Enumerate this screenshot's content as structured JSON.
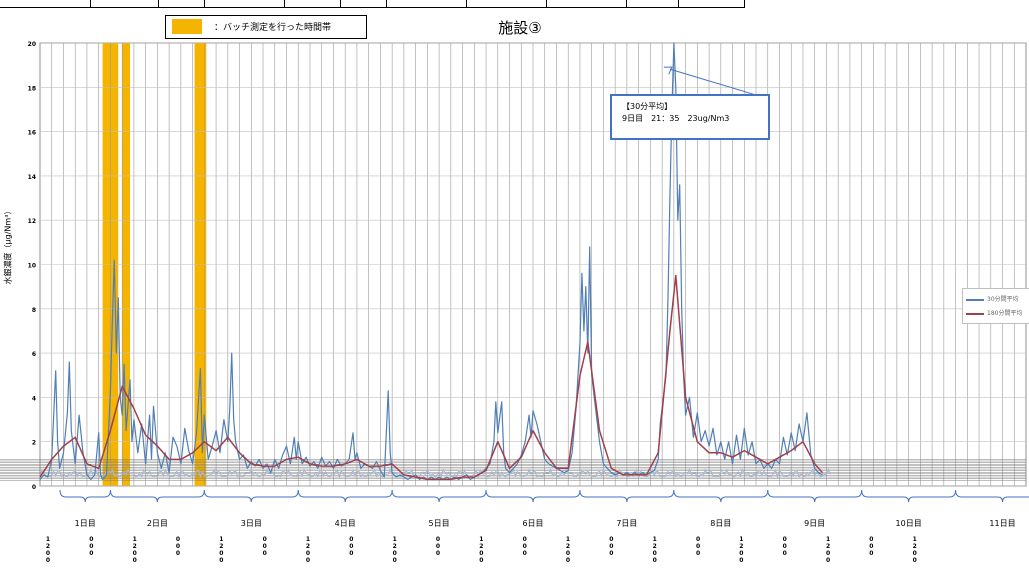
{
  "legend": {
    "batch_label": "：バッチ測定を行った時間帯"
  },
  "series_legend": {
    "items": [
      "30分間平均",
      "180分間平均"
    ]
  },
  "annotation": {
    "line1": "【30分平均】",
    "line2": "9日目　21：35　23ug/Nm3"
  },
  "colors": {
    "series30": "#4f7fb6",
    "series180": "#a0404a",
    "batch": "#f5b400",
    "annot_border": "#4472c4",
    "noise": "#aab8cf"
  },
  "chart_data": {
    "type": "line",
    "title": "施設③",
    "xlabel": "",
    "ylabel": "水銀濃度（μg/Nm³）",
    "ylim": [
      0,
      20
    ],
    "yticks": [
      0,
      2,
      4,
      6,
      8,
      10,
      12,
      14,
      16,
      18,
      20
    ],
    "grid": true,
    "legend_position": "right",
    "days": [
      "1日目",
      "2日目",
      "3日目",
      "4日目",
      "5日目",
      "6日目",
      "7日目",
      "8日目",
      "9日目",
      "10日目",
      "11日目"
    ],
    "time_ticks": [
      "12:00",
      "0:00",
      "12:00",
      "0:00",
      "12:00",
      "0:00",
      "12:00",
      "0:00",
      "12:00",
      "0:00",
      "12:00",
      "0:00",
      "12:00",
      "0:00",
      "12:00",
      "0:00",
      "12:00",
      "0:00",
      "12:00",
      "0:00",
      "12:00"
    ],
    "x_range_hours": [
      0,
      252
    ],
    "batch_periods_hours": [
      [
        16,
        20
      ],
      [
        21,
        23
      ],
      [
        39.5,
        42.5
      ]
    ],
    "series": [
      {
        "name": "30分間平均",
        "points": [
          [
            0,
            0.3
          ],
          [
            1,
            0.5
          ],
          [
            2,
            0.4
          ],
          [
            3,
            1.2
          ],
          [
            4,
            5.2
          ],
          [
            4.5,
            2.0
          ],
          [
            5,
            0.8
          ],
          [
            6,
            1.5
          ],
          [
            7,
            3.3
          ],
          [
            7.5,
            5.6
          ],
          [
            8,
            2.5
          ],
          [
            9,
            1.0
          ],
          [
            10,
            3.2
          ],
          [
            11,
            1.5
          ],
          [
            12,
            0.5
          ],
          [
            13,
            0.3
          ],
          [
            14,
            0.5
          ],
          [
            15,
            2.4
          ],
          [
            15.5,
            0.5
          ],
          [
            16,
            0.3
          ],
          [
            17,
            0.5
          ],
          [
            18,
            4.3
          ],
          [
            18.5,
            7.5
          ],
          [
            19,
            10.2
          ],
          [
            19.5,
            6.0
          ],
          [
            20,
            8.5
          ],
          [
            20.5,
            4.0
          ],
          [
            21,
            3.2
          ],
          [
            21.5,
            5.5
          ],
          [
            22,
            2.5
          ],
          [
            23,
            4.8
          ],
          [
            23.5,
            2.0
          ],
          [
            24,
            3.0
          ],
          [
            25,
            1.5
          ],
          [
            26,
            2.8
          ],
          [
            27,
            1.0
          ],
          [
            28,
            3.2
          ],
          [
            28.5,
            1.2
          ],
          [
            29,
            3.6
          ],
          [
            30,
            1.5
          ],
          [
            31,
            0.8
          ],
          [
            32,
            1.5
          ],
          [
            33,
            0.6
          ],
          [
            34,
            2.2
          ],
          [
            35,
            1.8
          ],
          [
            36,
            1.0
          ],
          [
            37,
            2.6
          ],
          [
            38,
            1.6
          ],
          [
            39,
            1.0
          ],
          [
            40,
            2.4
          ],
          [
            41,
            5.3
          ],
          [
            41.5,
            1.5
          ],
          [
            42,
            3.2
          ],
          [
            43,
            1.2
          ],
          [
            44,
            1.8
          ],
          [
            45,
            2.5
          ],
          [
            46,
            1.5
          ],
          [
            47,
            3.0
          ],
          [
            48,
            2.0
          ],
          [
            48.5,
            3.5
          ],
          [
            49,
            6.0
          ],
          [
            49.5,
            3.0
          ],
          [
            50,
            2.0
          ],
          [
            51,
            1.2
          ],
          [
            52,
            1.4
          ],
          [
            53,
            0.8
          ],
          [
            54,
            1.1
          ],
          [
            55,
            0.9
          ],
          [
            56,
            1.2
          ],
          [
            57,
            0.8
          ],
          [
            58,
            1.0
          ],
          [
            59,
            0.6
          ],
          [
            60,
            1.2
          ],
          [
            61,
            0.8
          ],
          [
            62,
            1.4
          ],
          [
            63,
            1.8
          ],
          [
            64,
            1.0
          ],
          [
            65,
            2.2
          ],
          [
            65.5,
            1.2
          ],
          [
            66,
            2.0
          ],
          [
            67,
            1.0
          ],
          [
            68,
            1.3
          ],
          [
            69,
            0.9
          ],
          [
            70,
            1.1
          ],
          [
            71,
            0.8
          ],
          [
            72,
            1.3
          ],
          [
            73,
            0.9
          ],
          [
            74,
            1.1
          ],
          [
            75,
            0.8
          ],
          [
            76,
            1.2
          ],
          [
            77,
            0.9
          ],
          [
            78,
            1.0
          ],
          [
            79,
            1.2
          ],
          [
            80,
            2.4
          ],
          [
            80.5,
            1.2
          ],
          [
            81,
            1.5
          ],
          [
            82,
            0.8
          ],
          [
            83,
            1.0
          ],
          [
            84,
            0.9
          ],
          [
            85,
            0.8
          ],
          [
            86,
            1.1
          ],
          [
            87,
            0.7
          ],
          [
            88,
            0.4
          ],
          [
            89,
            4.3
          ],
          [
            89.5,
            1.5
          ],
          [
            90,
            0.6
          ],
          [
            91,
            0.4
          ],
          [
            92,
            0.5
          ],
          [
            93,
            0.4
          ],
          [
            94,
            0.3
          ],
          [
            95,
            0.4
          ],
          [
            96,
            0.5
          ],
          [
            97,
            0.3
          ],
          [
            98,
            0.4
          ],
          [
            99,
            0.3
          ],
          [
            100,
            0.4
          ],
          [
            101,
            0.3
          ],
          [
            102,
            0.4
          ],
          [
            103,
            0.3
          ],
          [
            104,
            0.4
          ],
          [
            105,
            0.3
          ],
          [
            106,
            0.4
          ],
          [
            107,
            0.3
          ],
          [
            108,
            0.4
          ],
          [
            109,
            0.5
          ],
          [
            110,
            0.3
          ],
          [
            111,
            0.4
          ],
          [
            112,
            0.5
          ],
          [
            113,
            0.6
          ],
          [
            114,
            0.8
          ],
          [
            115,
            1.0
          ],
          [
            116,
            2.0
          ],
          [
            116.5,
            3.8
          ],
          [
            117,
            2.4
          ],
          [
            118,
            3.8
          ],
          [
            118.5,
            1.5
          ],
          [
            119,
            0.8
          ],
          [
            120,
            0.6
          ],
          [
            121,
            0.8
          ],
          [
            122,
            1.0
          ],
          [
            123,
            1.4
          ],
          [
            124,
            2.0
          ],
          [
            125,
            3.2
          ],
          [
            125.5,
            2.2
          ],
          [
            126,
            3.4
          ],
          [
            127,
            2.8
          ],
          [
            128,
            2.0
          ],
          [
            129,
            1.2
          ],
          [
            130,
            1.0
          ],
          [
            131,
            0.9
          ],
          [
            132,
            0.8
          ],
          [
            133,
            0.7
          ],
          [
            134,
            0.6
          ],
          [
            135,
            0.7
          ],
          [
            136,
            1.5
          ],
          [
            137,
            3.5
          ],
          [
            138,
            6.5
          ],
          [
            138.5,
            9.6
          ],
          [
            139,
            7.0
          ],
          [
            139.5,
            9.0
          ],
          [
            140,
            6.0
          ],
          [
            140.5,
            10.8
          ],
          [
            141,
            5.0
          ],
          [
            142,
            3.5
          ],
          [
            143,
            2.0
          ],
          [
            144,
            1.0
          ],
          [
            145,
            0.8
          ],
          [
            146,
            0.6
          ],
          [
            147,
            0.5
          ],
          [
            148,
            0.6
          ],
          [
            149,
            0.5
          ],
          [
            150,
            0.6
          ],
          [
            151,
            0.5
          ],
          [
            152,
            0.6
          ],
          [
            153,
            0.5
          ],
          [
            154,
            0.6
          ],
          [
            155,
            0.5
          ],
          [
            156,
            0.6
          ],
          [
            157,
            0.7
          ],
          [
            158,
            1.2
          ],
          [
            158.5,
            2.8
          ],
          [
            159,
            3.5
          ],
          [
            160,
            5.0
          ],
          [
            160.5,
            8.5
          ],
          [
            161,
            13.0
          ],
          [
            161.5,
            17.0
          ],
          [
            162,
            23.0
          ],
          [
            162.5,
            18.0
          ],
          [
            163,
            12.0
          ],
          [
            163.5,
            13.6
          ],
          [
            164,
            8.0
          ],
          [
            164.5,
            5.0
          ],
          [
            165,
            3.2
          ],
          [
            166,
            4.0
          ],
          [
            167,
            2.2
          ],
          [
            168,
            3.3
          ],
          [
            169,
            2.0
          ],
          [
            170,
            2.5
          ],
          [
            171,
            1.8
          ],
          [
            172,
            2.6
          ],
          [
            173,
            1.4
          ],
          [
            174,
            2.0
          ],
          [
            175,
            1.2
          ],
          [
            176,
            2.0
          ],
          [
            177,
            1.0
          ],
          [
            178,
            2.3
          ],
          [
            179,
            1.2
          ],
          [
            180,
            2.6
          ],
          [
            181,
            1.4
          ],
          [
            182,
            2.0
          ],
          [
            183,
            1.0
          ],
          [
            184,
            1.2
          ],
          [
            185,
            0.8
          ],
          [
            186,
            1.0
          ],
          [
            187,
            0.8
          ],
          [
            188,
            1.2
          ],
          [
            189,
            1.0
          ],
          [
            190,
            2.2
          ],
          [
            191,
            1.4
          ],
          [
            192,
            2.4
          ],
          [
            193,
            1.6
          ],
          [
            194,
            2.8
          ],
          [
            195,
            2.0
          ],
          [
            196,
            3.3
          ],
          [
            197,
            1.4
          ],
          [
            198,
            0.8
          ],
          [
            199,
            0.6
          ],
          [
            200,
            0.5
          ]
        ]
      },
      {
        "name": "180分間平均",
        "points": [
          [
            0,
            0.4
          ],
          [
            3,
            1.2
          ],
          [
            6,
            1.8
          ],
          [
            9,
            2.2
          ],
          [
            12,
            1.0
          ],
          [
            15,
            0.8
          ],
          [
            18,
            2.5
          ],
          [
            21,
            4.5
          ],
          [
            24,
            3.5
          ],
          [
            27,
            2.3
          ],
          [
            30,
            1.8
          ],
          [
            33,
            1.2
          ],
          [
            36,
            1.2
          ],
          [
            39,
            1.5
          ],
          [
            42,
            2.0
          ],
          [
            45,
            1.6
          ],
          [
            48,
            2.2
          ],
          [
            51,
            1.5
          ],
          [
            54,
            1.0
          ],
          [
            57,
            0.9
          ],
          [
            60,
            0.9
          ],
          [
            63,
            1.2
          ],
          [
            66,
            1.3
          ],
          [
            69,
            1.0
          ],
          [
            72,
            0.9
          ],
          [
            75,
            0.9
          ],
          [
            78,
            1.0
          ],
          [
            81,
            1.2
          ],
          [
            84,
            0.9
          ],
          [
            87,
            0.9
          ],
          [
            90,
            1.0
          ],
          [
            93,
            0.5
          ],
          [
            96,
            0.4
          ],
          [
            99,
            0.3
          ],
          [
            102,
            0.3
          ],
          [
            105,
            0.3
          ],
          [
            108,
            0.4
          ],
          [
            111,
            0.4
          ],
          [
            114,
            0.7
          ],
          [
            117,
            2.0
          ],
          [
            120,
            0.8
          ],
          [
            123,
            1.3
          ],
          [
            126,
            2.5
          ],
          [
            129,
            1.5
          ],
          [
            132,
            0.8
          ],
          [
            135,
            0.8
          ],
          [
            138,
            5.0
          ],
          [
            140,
            6.5
          ],
          [
            143,
            2.5
          ],
          [
            146,
            0.8
          ],
          [
            149,
            0.5
          ],
          [
            152,
            0.5
          ],
          [
            155,
            0.5
          ],
          [
            158,
            1.5
          ],
          [
            161,
            7.0
          ],
          [
            162.5,
            9.5
          ],
          [
            165,
            4.0
          ],
          [
            168,
            2.0
          ],
          [
            171,
            1.5
          ],
          [
            174,
            1.5
          ],
          [
            177,
            1.3
          ],
          [
            180,
            1.6
          ],
          [
            183,
            1.3
          ],
          [
            186,
            1.0
          ],
          [
            189,
            1.3
          ],
          [
            192,
            1.6
          ],
          [
            195,
            2.0
          ],
          [
            198,
            1.0
          ],
          [
            200,
            0.6
          ]
        ]
      }
    ]
  }
}
